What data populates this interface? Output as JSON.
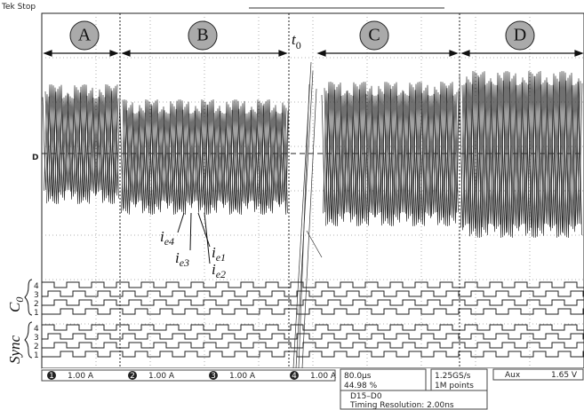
{
  "status": "Tek Stop",
  "level_marker": "D",
  "sections": [
    "A",
    "B",
    "C",
    "D"
  ],
  "trigger": {
    "base": "t",
    "sub": "0"
  },
  "current_labels": [
    {
      "base": "i",
      "sub": "e4"
    },
    {
      "base": "i",
      "sub": "e3"
    },
    {
      "base": "i",
      "sub": "e1"
    },
    {
      "base": "i",
      "sub": "e2"
    }
  ],
  "bus_labels": [
    {
      "base": "C",
      "sub": "0"
    },
    {
      "base": "Sync"
    }
  ],
  "bus_levels": [
    "4",
    "3",
    "2",
    "1"
  ],
  "channels": [
    {
      "number": "1",
      "scale": "1.00 A"
    },
    {
      "number": "2",
      "scale": "1.00 A"
    },
    {
      "number": "3",
      "scale": "1.00 A"
    },
    {
      "number": "4",
      "scale": "1.00 A"
    }
  ],
  "timebase": "80.0µs",
  "position": "44.98 %",
  "sample_rate": "1.25GS/s",
  "record": "1M points",
  "trigger_source": "Aux",
  "trigger_level": "1.65 V",
  "digital": "D15–D0",
  "timing": "Timing Resolution: 2.00ns"
}
